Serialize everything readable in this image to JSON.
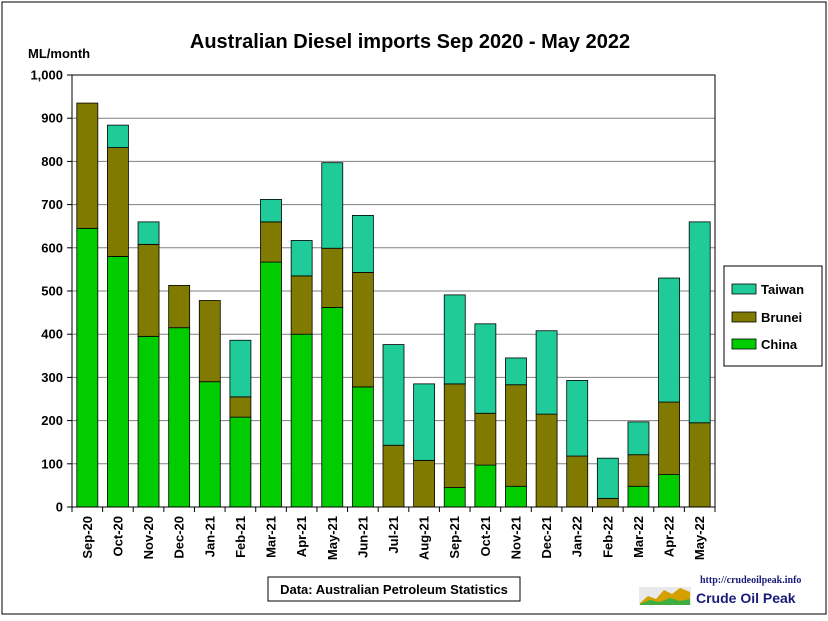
{
  "chart_data": {
    "type": "bar",
    "stacked": true,
    "title": "Australian Diesel imports Sep 2020 - May 2022",
    "ylabel": "ML/month",
    "xlabel": "",
    "ylim": [
      0,
      1000
    ],
    "yticks": [
      0,
      100,
      200,
      300,
      400,
      500,
      600,
      700,
      800,
      900,
      1000
    ],
    "ytick_labels": [
      "0",
      "100",
      "200",
      "300",
      "400",
      "500",
      "600",
      "700",
      "800",
      "900",
      "1,000"
    ],
    "grid": "horizontal",
    "legend_position": "right",
    "categories": [
      "Sep-20",
      "Oct-20",
      "Nov-20",
      "Dec-20",
      "Jan-21",
      "Feb-21",
      "Mar-21",
      "Apr-21",
      "May-21",
      "Jun-21",
      "Jul-21",
      "Aug-21",
      "Sep-21",
      "Oct-21",
      "Nov-21",
      "Dec-21",
      "Jan-22",
      "Feb-22",
      "Mar-22",
      "Apr-22",
      "May-22"
    ],
    "series": [
      {
        "name": "China",
        "color": "#00cc00",
        "values": [
          645,
          580,
          395,
          415,
          290,
          208,
          567,
          400,
          462,
          278,
          0,
          0,
          45,
          97,
          48,
          0,
          0,
          0,
          48,
          75,
          0
        ]
      },
      {
        "name": "Brunei",
        "color": "#807a00",
        "values": [
          290,
          252,
          213,
          98,
          188,
          47,
          93,
          135,
          137,
          265,
          143,
          108,
          240,
          120,
          235,
          215,
          118,
          20,
          73,
          168,
          195
        ]
      },
      {
        "name": "Taiwan",
        "color": "#1fcc99",
        "values": [
          0,
          52,
          52,
          0,
          0,
          131,
          52,
          82,
          198,
          132,
          233,
          177,
          206,
          207,
          62,
          193,
          175,
          93,
          76,
          287,
          465
        ]
      }
    ],
    "legend_order": [
      "Taiwan",
      "Brunei",
      "China"
    ],
    "annotation": "Data: Australian Petroleum Statistics"
  },
  "logo": {
    "url": "http://crudeoilpeak.info",
    "name": "Crude Oil Peak"
  }
}
